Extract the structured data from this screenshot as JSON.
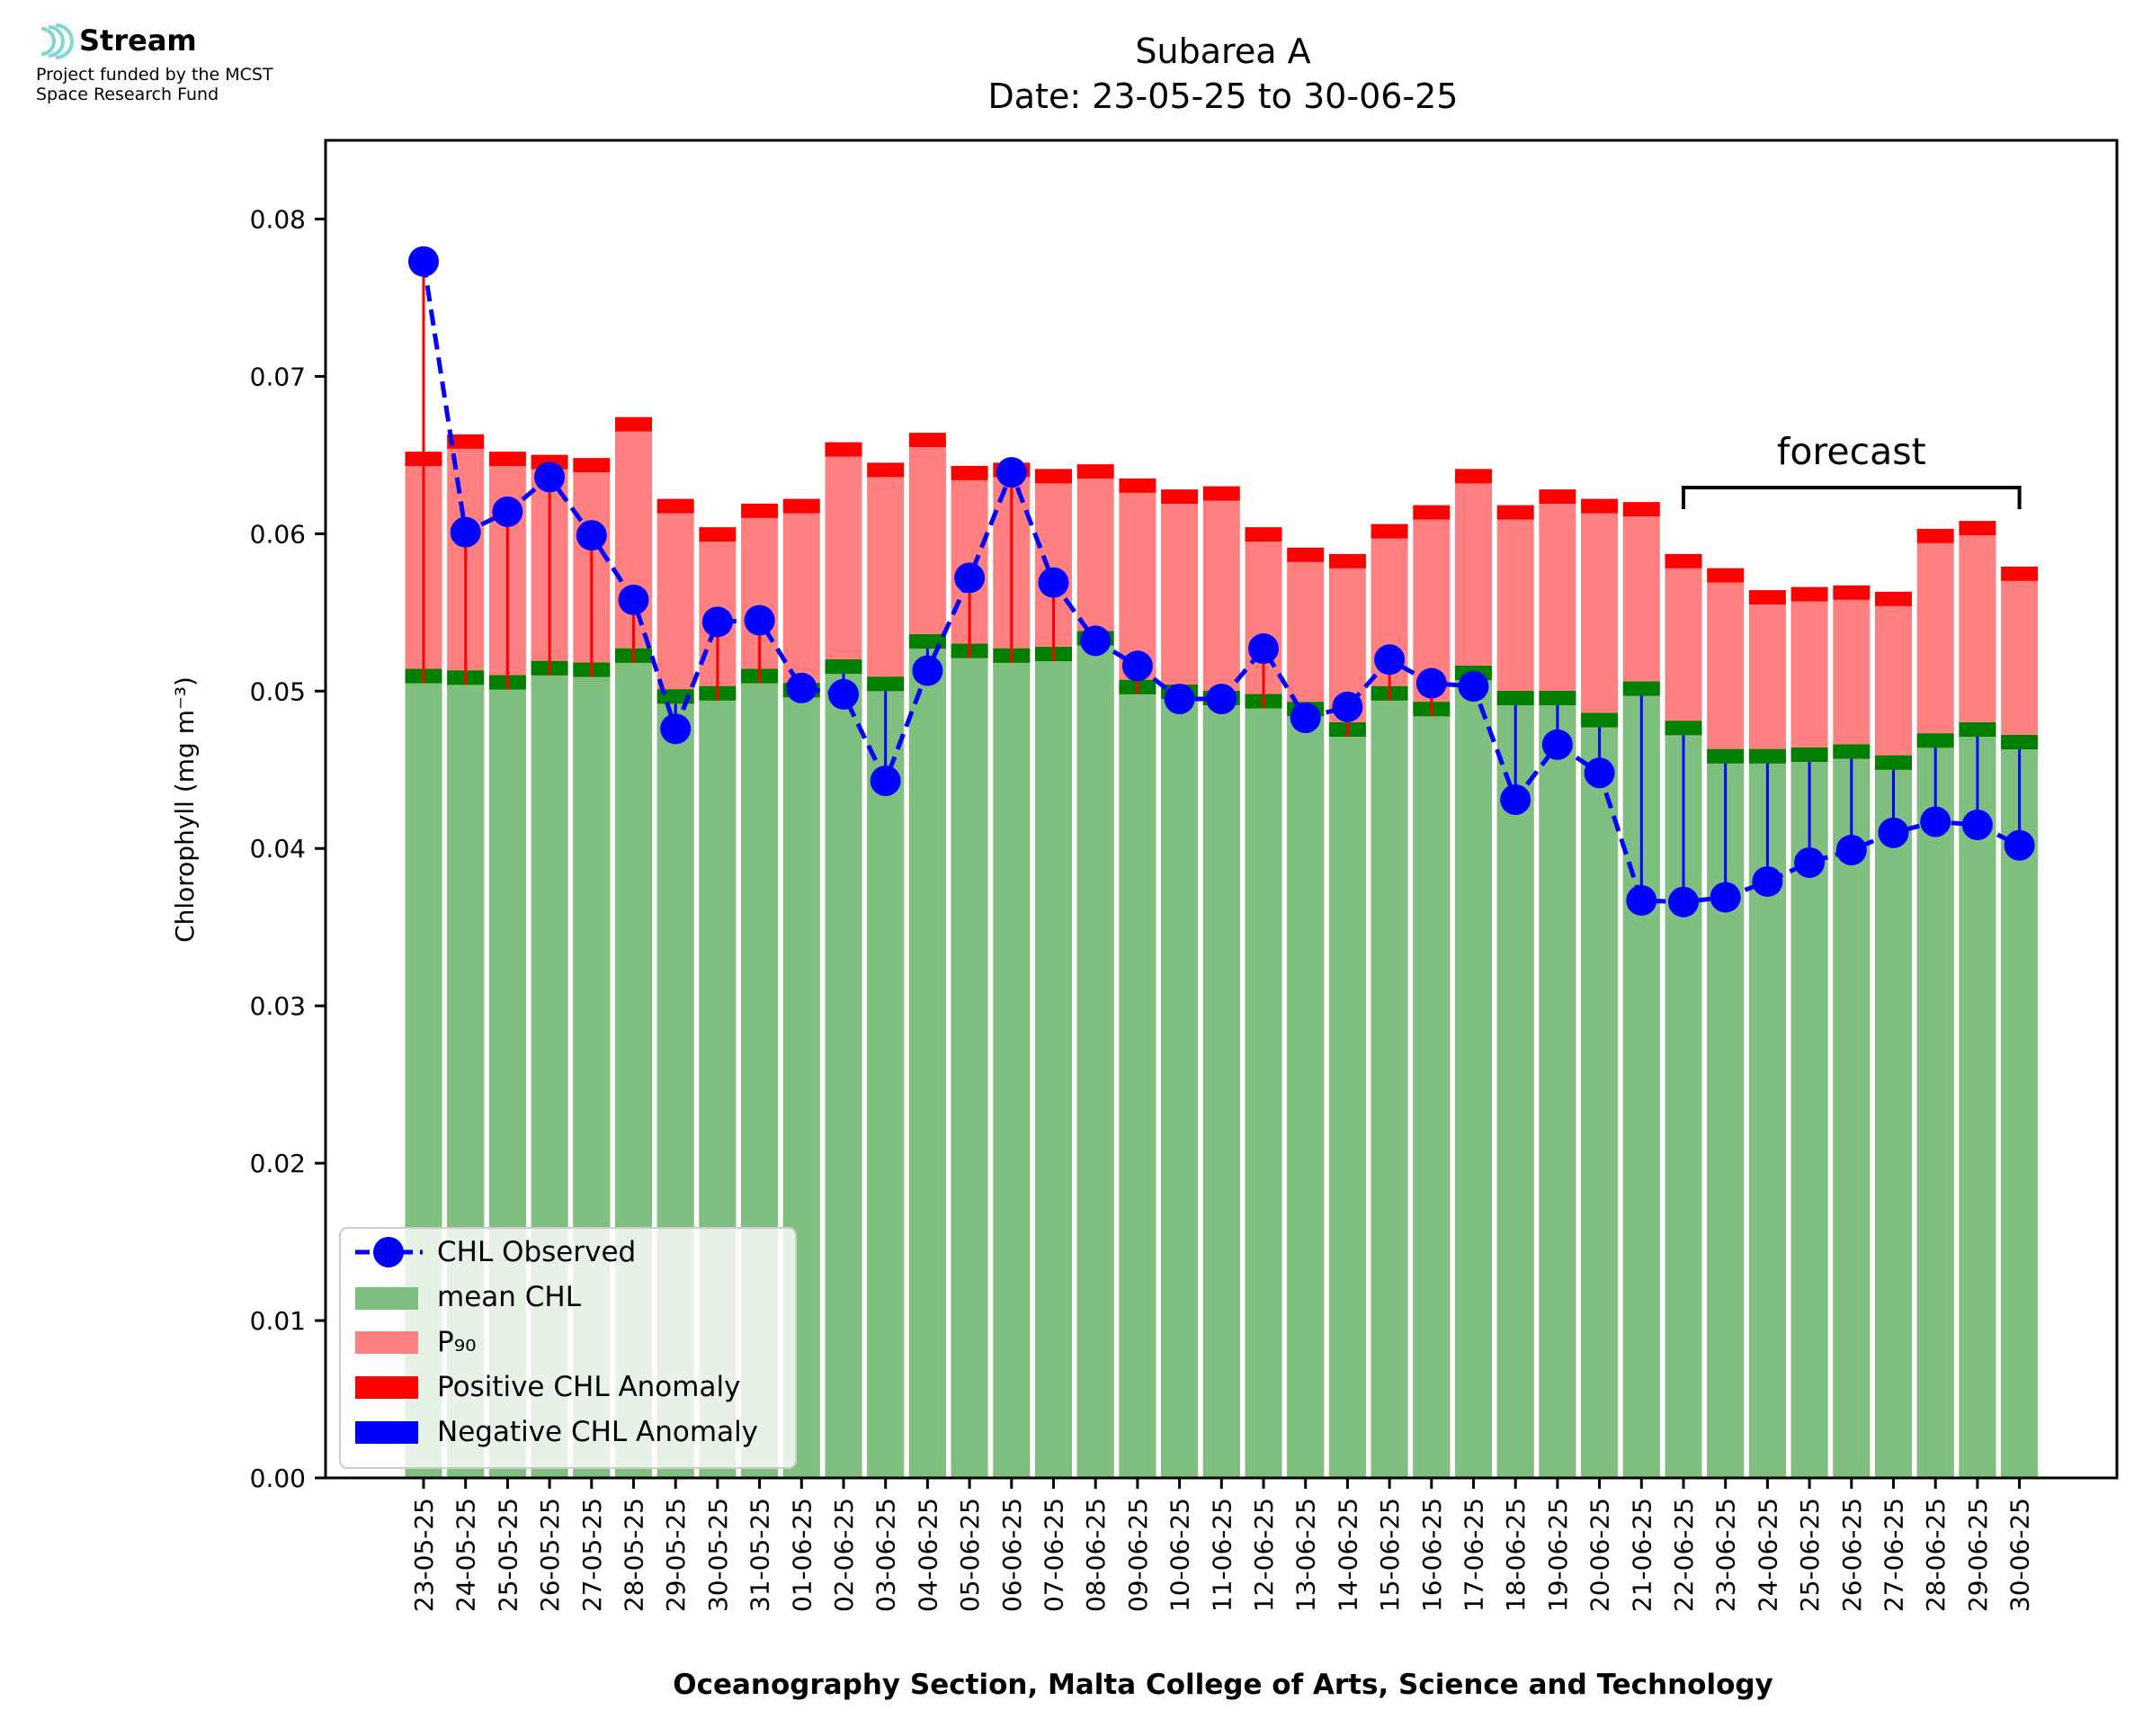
{
  "logo": {
    "brand": "Stream",
    "line1": "Project funded by the MCST",
    "line2": "Space Research Fund"
  },
  "chart_data": {
    "type": "bar",
    "title": "Subarea A",
    "subtitle": "Date: 23-05-25 to 30-06-25",
    "xlabel": "Oceanography Section, Malta College of Arts, Science and Technology",
    "ylabel": "Chlorophyll (mg m⁻³)",
    "ylim": [
      0,
      0.085
    ],
    "yticks": [
      0.0,
      0.01,
      0.02,
      0.03,
      0.04,
      0.05,
      0.06,
      0.07,
      0.08
    ],
    "ytick_labels": [
      "0.00",
      "0.01",
      "0.02",
      "0.03",
      "0.04",
      "0.05",
      "0.06",
      "0.07",
      "0.08"
    ],
    "grid": false,
    "legend_position": "lower-left",
    "annotation": "forecast",
    "forecast_start": "22-06-25",
    "forecast_end": "30-06-25",
    "categories": [
      "23-05-25",
      "24-05-25",
      "25-05-25",
      "26-05-25",
      "27-05-25",
      "28-05-25",
      "29-05-25",
      "30-05-25",
      "31-05-25",
      "01-06-25",
      "02-06-25",
      "03-06-25",
      "04-06-25",
      "05-06-25",
      "06-06-25",
      "07-06-25",
      "08-06-25",
      "09-06-25",
      "10-06-25",
      "11-06-25",
      "12-06-25",
      "13-06-25",
      "14-06-25",
      "15-06-25",
      "16-06-25",
      "17-06-25",
      "18-06-25",
      "19-06-25",
      "20-06-25",
      "21-06-25",
      "22-06-25",
      "23-06-25",
      "24-06-25",
      "25-06-25",
      "26-06-25",
      "27-06-25",
      "28-06-25",
      "29-06-25",
      "30-06-25"
    ],
    "series": [
      {
        "name": "CHL Observed",
        "color": "#0000ff",
        "values": [
          0.0773,
          0.0601,
          0.0614,
          0.0636,
          0.0599,
          0.0558,
          0.0476,
          0.0544,
          0.0545,
          0.0502,
          0.0498,
          0.0443,
          0.0513,
          0.0572,
          0.0639,
          0.0569,
          0.0532,
          0.0516,
          0.0495,
          0.0495,
          0.0527,
          0.0483,
          0.049,
          0.052,
          0.0505,
          0.0503,
          0.0431,
          0.0466,
          0.0448,
          0.0367,
          0.0366,
          0.0369,
          0.0379,
          0.0391,
          0.0399,
          0.041,
          0.0417,
          0.0415,
          0.0402
        ]
      },
      {
        "name": "mean CHL",
        "color": "#7fbf7f",
        "values": [
          0.0505,
          0.0504,
          0.0501,
          0.051,
          0.0509,
          0.0518,
          0.0492,
          0.0494,
          0.0505,
          0.0496,
          0.0511,
          0.05,
          0.0527,
          0.0521,
          0.0518,
          0.0519,
          0.0529,
          0.0498,
          0.0495,
          0.0491,
          0.0489,
          0.0484,
          0.0471,
          0.0494,
          0.0484,
          0.0507,
          0.0491,
          0.0491,
          0.0477,
          0.0497,
          0.0472,
          0.0454,
          0.0454,
          0.0455,
          0.0457,
          0.045,
          0.0464,
          0.0471,
          0.0463
        ]
      },
      {
        "name": "P₉₀",
        "color": "#ff8080",
        "values": [
          0.0643,
          0.0654,
          0.0643,
          0.0641,
          0.0639,
          0.0665,
          0.0613,
          0.0595,
          0.061,
          0.0613,
          0.0649,
          0.0636,
          0.0655,
          0.0634,
          0.0636,
          0.0632,
          0.0635,
          0.0626,
          0.0619,
          0.0621,
          0.0595,
          0.0582,
          0.0578,
          0.0597,
          0.0609,
          0.0632,
          0.0609,
          0.0619,
          0.0613,
          0.0611,
          0.0578,
          0.0569,
          0.0555,
          0.0557,
          0.0558,
          0.0554,
          0.0594,
          0.0599,
          0.057
        ]
      },
      {
        "name": "Positive CHL Anomaly",
        "color": "#ff0000"
      },
      {
        "name": "Negative CHL Anomaly",
        "color": "#0000ff"
      }
    ]
  }
}
